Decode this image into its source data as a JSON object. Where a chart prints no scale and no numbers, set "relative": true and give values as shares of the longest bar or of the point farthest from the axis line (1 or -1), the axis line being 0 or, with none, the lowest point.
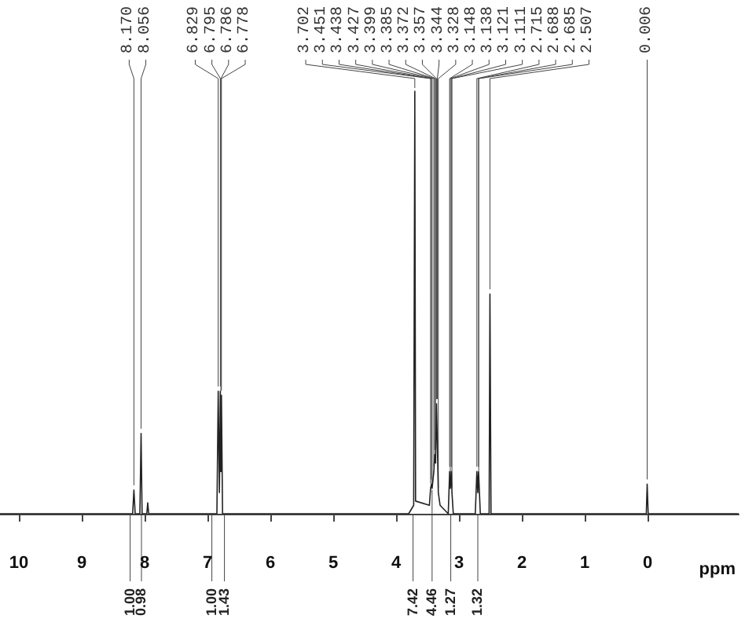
{
  "chart_data": {
    "type": "line",
    "relative": true,
    "xlabel": "ppm",
    "xlim": [
      10.3,
      -1.45
    ],
    "xticks": [
      10,
      9,
      8,
      7,
      6,
      5,
      4,
      3,
      2,
      1,
      0
    ],
    "tick_labels": "x",
    "grid": false,
    "marker": "none",
    "line_style": "solid",
    "x": [
      10.3,
      8.19,
      8.17,
      8.15,
      8.075,
      8.056,
      8.04,
      7.965,
      7.95,
      7.935,
      6.85,
      6.829,
      6.81,
      6.795,
      6.79,
      6.786,
      6.782,
      6.778,
      6.76,
      3.8,
      3.72,
      3.702,
      3.69,
      3.47,
      3.451,
      3.438,
      3.427,
      3.399,
      3.385,
      3.372,
      3.357,
      3.344,
      3.328,
      3.3,
      3.17,
      3.148,
      3.138,
      3.121,
      3.111,
      3.09,
      2.74,
      2.715,
      2.7,
      2.688,
      2.685,
      2.66,
      2.52,
      2.507,
      2.49,
      0.02,
      0.006,
      -0.01,
      -1.45
    ],
    "series": [
      {
        "color": "#222222",
        "values": [
          0,
          0,
          0.056,
          0,
          0,
          0.19,
          0,
          0,
          0.026,
          0,
          0,
          0.29,
          0.05,
          0.29,
          0.1,
          0.28,
          0.1,
          0.28,
          0,
          0,
          0.02,
          1,
          0.03,
          0.02,
          0.06,
          0.07,
          0.06,
          0.1,
          0.14,
          0.12,
          0.26,
          0.26,
          0.05,
          0.02,
          0,
          0.1,
          0.06,
          0.1,
          0.05,
          0,
          0,
          0.1,
          0.05,
          0.1,
          0.09,
          0,
          0,
          0.52,
          0,
          0,
          0.07,
          0,
          0
        ]
      }
    ],
    "annotations": [
      {
        "text": "8.170",
        "x": 8.17,
        "y": 0.056
      },
      {
        "text": "8.056",
        "x": 8.056,
        "y": 0.19
      },
      {
        "text": "6.829",
        "x": 6.829,
        "y": 0.29
      },
      {
        "text": "6.795",
        "x": 6.795,
        "y": 0.29
      },
      {
        "text": "6.786",
        "x": 6.786,
        "y": 0.28
      },
      {
        "text": "6.778",
        "x": 6.778,
        "y": 0.28
      },
      {
        "text": "3.702",
        "x": 3.702,
        "y": 1
      },
      {
        "text": "3.451",
        "x": 3.451,
        "y": 0.06
      },
      {
        "text": "3.438",
        "x": 3.438,
        "y": 0.07
      },
      {
        "text": "3.427",
        "x": 3.427,
        "y": 0.06
      },
      {
        "text": "3.399",
        "x": 3.399,
        "y": 0.1
      },
      {
        "text": "3.385",
        "x": 3.385,
        "y": 0.14
      },
      {
        "text": "3.372",
        "x": 3.372,
        "y": 0.12
      },
      {
        "text": "3.357",
        "x": 3.357,
        "y": 0.26
      },
      {
        "text": "3.344",
        "x": 3.344,
        "y": 0.26
      },
      {
        "text": "3.328",
        "x": 3.328,
        "y": 0.05
      },
      {
        "text": "3.148",
        "x": 3.148,
        "y": 0.1
      },
      {
        "text": "3.138",
        "x": 3.138,
        "y": 0.06
      },
      {
        "text": "3.121",
        "x": 3.121,
        "y": 0.1
      },
      {
        "text": "3.111",
        "x": 3.111,
        "y": 0.05
      },
      {
        "text": "2.715",
        "x": 2.715,
        "y": 0.1
      },
      {
        "text": "2.688",
        "x": 2.688,
        "y": 0.1
      },
      {
        "text": "2.685",
        "x": 2.685,
        "y": 0.09
      },
      {
        "text": "2.507",
        "x": 2.507,
        "y": 0.52
      },
      {
        "text": "0.006",
        "x": 0.006,
        "y": 0.07
      },
      {
        "text": "1.00",
        "x": 8.23,
        "y": 0
      },
      {
        "text": "0.98",
        "x": 8.05,
        "y": 0
      },
      {
        "text": "1.00",
        "x": 6.93,
        "y": 0
      },
      {
        "text": "1.43",
        "x": 6.73,
        "y": 0
      },
      {
        "text": "7.42",
        "x": 3.73,
        "y": 0
      },
      {
        "text": "4.46",
        "x": 3.427,
        "y": 0.06
      },
      {
        "text": "1.27",
        "x": 3.13,
        "y": 0
      },
      {
        "text": "1.32",
        "x": 2.7,
        "y": 0
      }
    ]
  }
}
